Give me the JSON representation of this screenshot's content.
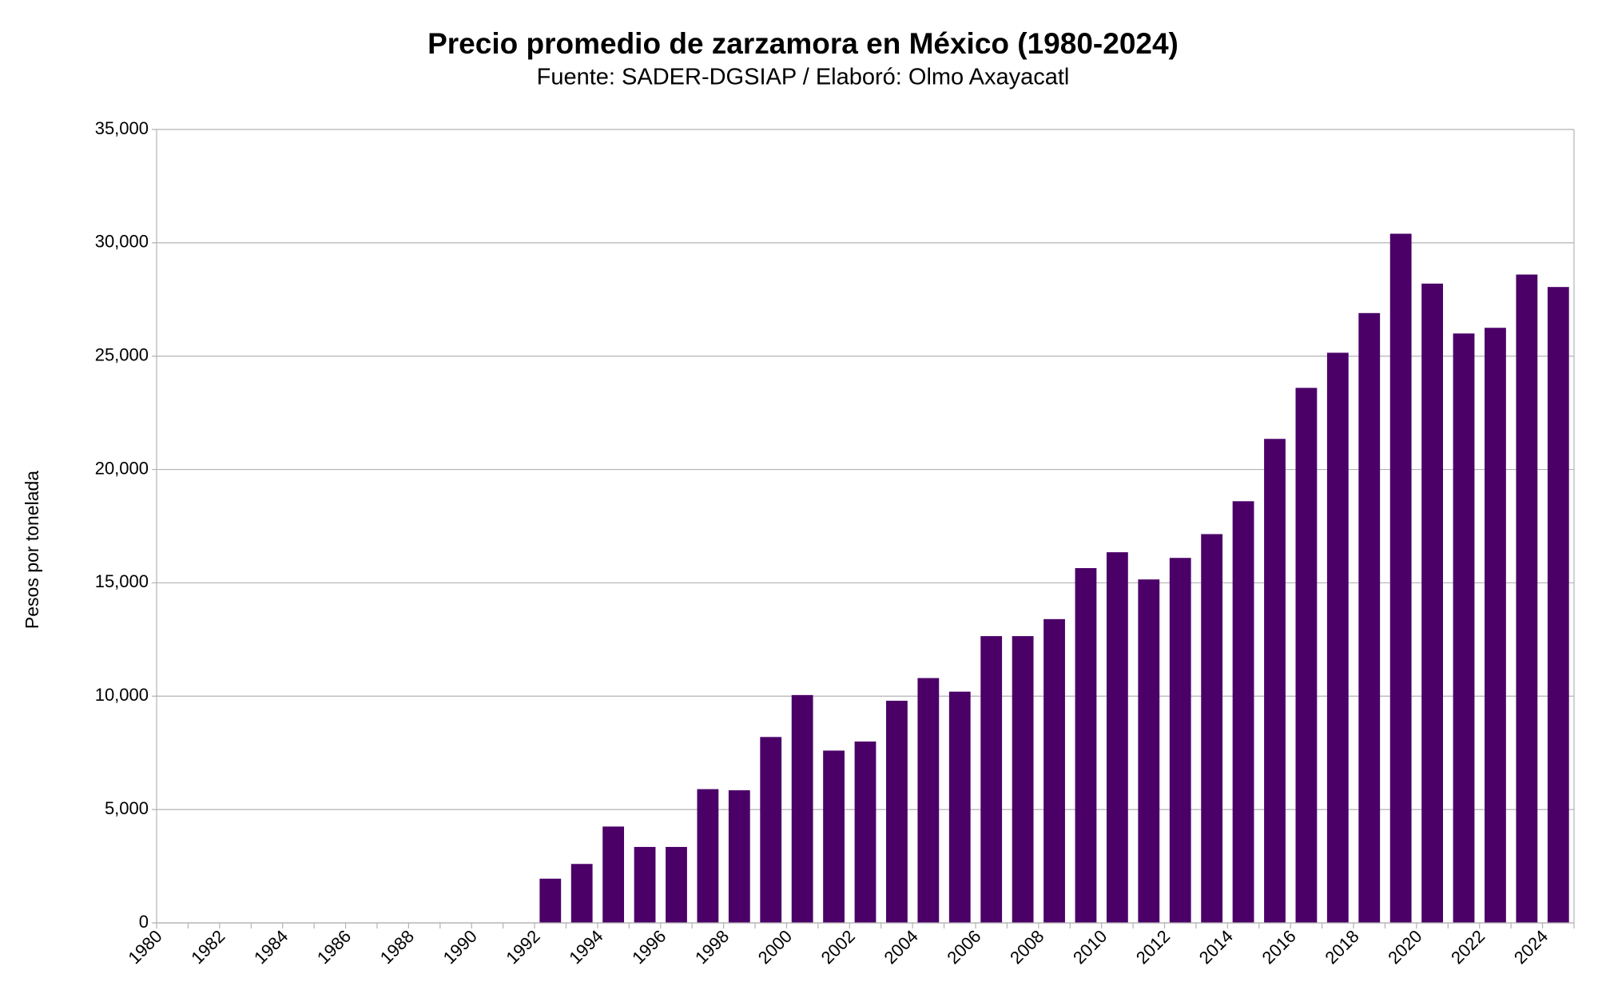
{
  "chart_data": {
    "type": "bar",
    "title": "Precio promedio de zarzamora en México (1980-2024)",
    "subtitle": "Fuente: SADER-DGSIAP / Elaboró: Olmo Axayacatl",
    "y_label": "Pesos por tonelada",
    "categories": [
      "1980",
      null,
      "1982",
      null,
      "1984",
      null,
      "1986",
      null,
      "1988",
      null,
      "1990",
      null,
      "1992",
      null,
      "1994",
      null,
      "1996",
      null,
      "1998",
      null,
      "2000",
      null,
      "2002",
      null,
      "2004",
      null,
      "2006",
      null,
      "2008",
      null,
      "2010",
      null,
      "2012",
      null,
      "2014",
      null,
      "2016",
      null,
      "2018",
      null,
      "2020",
      null,
      "2022",
      null,
      "2024"
    ],
    "values": [
      null,
      null,
      null,
      null,
      null,
      null,
      null,
      null,
      null,
      null,
      null,
      null,
      1950,
      2600,
      4250,
      3350,
      3350,
      5900,
      5850,
      8200,
      10050,
      7600,
      8000,
      9800,
      10800,
      10200,
      12650,
      12650,
      13400,
      15650,
      16350,
      15150,
      16100,
      17150,
      18600,
      21350,
      23600,
      25150,
      26900,
      30400,
      28200,
      26000,
      26250,
      28600,
      28050
    ],
    "color": "#4b0068",
    "ylim": [
      0,
      35000
    ],
    "yticks": [
      0,
      {
        "value": 5000,
        "label": "5,000"
      },
      {
        "value": 10000,
        "label": "10,000"
      },
      {
        "value": 15000,
        "label": "15,000"
      },
      {
        "value": 20000,
        "label": "20,000"
      },
      {
        "value": 25000,
        "label": "25,000"
      },
      {
        "value": 30000,
        "label": "30,000"
      },
      {
        "value": 35000,
        "label": "35,000"
      }
    ],
    "grid": true
  }
}
